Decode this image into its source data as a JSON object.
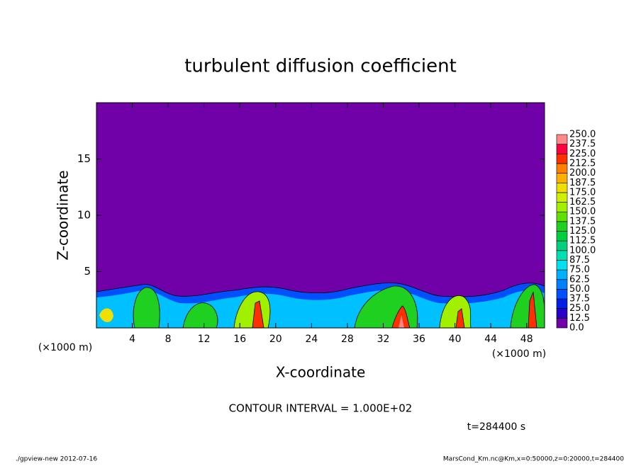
{
  "chart_data": {
    "type": "contour",
    "title": "turbulent diffusion coefficient",
    "x_label": "X-coordinate",
    "y_label": "Z-coordinate",
    "x_unit": "(×1000 m)",
    "xlim": [
      0,
      50
    ],
    "xticks": [
      4,
      8,
      12,
      16,
      20,
      24,
      28,
      32,
      36,
      40,
      44,
      48
    ],
    "ylim": [
      0,
      20
    ],
    "yticks": [
      5,
      10,
      15
    ],
    "levels": [
      {
        "value": 0,
        "label": "0.0"
      },
      {
        "value": 12.5,
        "label": "12.5"
      },
      {
        "value": 25,
        "label": "25.0"
      },
      {
        "value": 37.5,
        "label": "37.5"
      },
      {
        "value": 50,
        "label": "50.0"
      },
      {
        "value": 62.5,
        "label": "62.5"
      },
      {
        "value": 75,
        "label": "75.0"
      },
      {
        "value": 87.5,
        "label": "87.5"
      },
      {
        "value": 100,
        "label": "100.0"
      },
      {
        "value": 112.5,
        "label": "112.5"
      },
      {
        "value": 125,
        "label": "125.0"
      },
      {
        "value": 137.5,
        "label": "137.5"
      },
      {
        "value": 150,
        "label": "150.0"
      },
      {
        "value": 162.5,
        "label": "162.5"
      },
      {
        "value": 175,
        "label": "175.0"
      },
      {
        "value": 187.5,
        "label": "187.5"
      },
      {
        "value": 200,
        "label": "200.0"
      },
      {
        "value": 212.5,
        "label": "212.5"
      },
      {
        "value": 225,
        "label": "225.0"
      },
      {
        "value": 237.5,
        "label": "237.5"
      },
      {
        "value": 250,
        "label": "250.0"
      }
    ],
    "level_colors": [
      "#7000a8",
      "#2800c8",
      "#0020e8",
      "#0050ff",
      "#0080ff",
      "#00b0ff",
      "#00e0f0",
      "#00e0b0",
      "#00d080",
      "#00d040",
      "#20d020",
      "#60e000",
      "#a0f000",
      "#d0f000",
      "#f0e000",
      "#ffb000",
      "#ff8000",
      "#ff3000",
      "#ff0040",
      "#ff8888"
    ],
    "contour_interval": "CONTOUR INTERVAL = 1.000E+02",
    "time_label": "t=284400 s",
    "footer_left": "./gpview-new  2012-07-16",
    "footer_right": "MarsCond_Km.nc@Km,x=0:50000,z=0:20000,t=284400"
  }
}
